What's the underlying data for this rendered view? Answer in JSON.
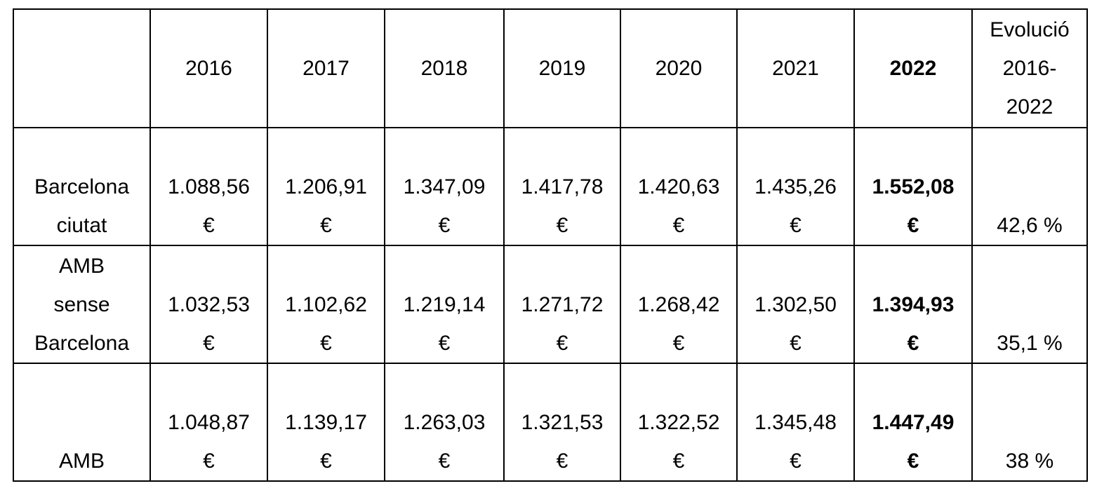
{
  "table": {
    "header": [
      "2016",
      "2017",
      "2018",
      "2019",
      "2020",
      "2021",
      "2022",
      "Evolució 2016-2022"
    ],
    "rows": [
      {
        "label": "Barcelona ciutat",
        "cells": [
          "1.088,56 €",
          "1.206,91 €",
          "1.347,09 €",
          "1.417,78 €",
          "1.420,63 €",
          "1.435,26 €",
          "1.552,08 €"
        ],
        "evolution": "42,6 %"
      },
      {
        "label": "AMB sense Barcelona",
        "cells": [
          "1.032,53 €",
          "1.102,62 €",
          "1.219,14 €",
          "1.271,72 €",
          "1.268,42 €",
          "1.302,50 €",
          "1.394,93 €"
        ],
        "evolution": "35,1 %"
      },
      {
        "label": "AMB",
        "cells": [
          "1.048,87 €",
          "1.139,17 €",
          "1.263,03 €",
          "1.321,53 €",
          "1.322,52 €",
          "1.345,48 €",
          "1.447,49 €"
        ],
        "evolution": "38 %"
      }
    ]
  }
}
